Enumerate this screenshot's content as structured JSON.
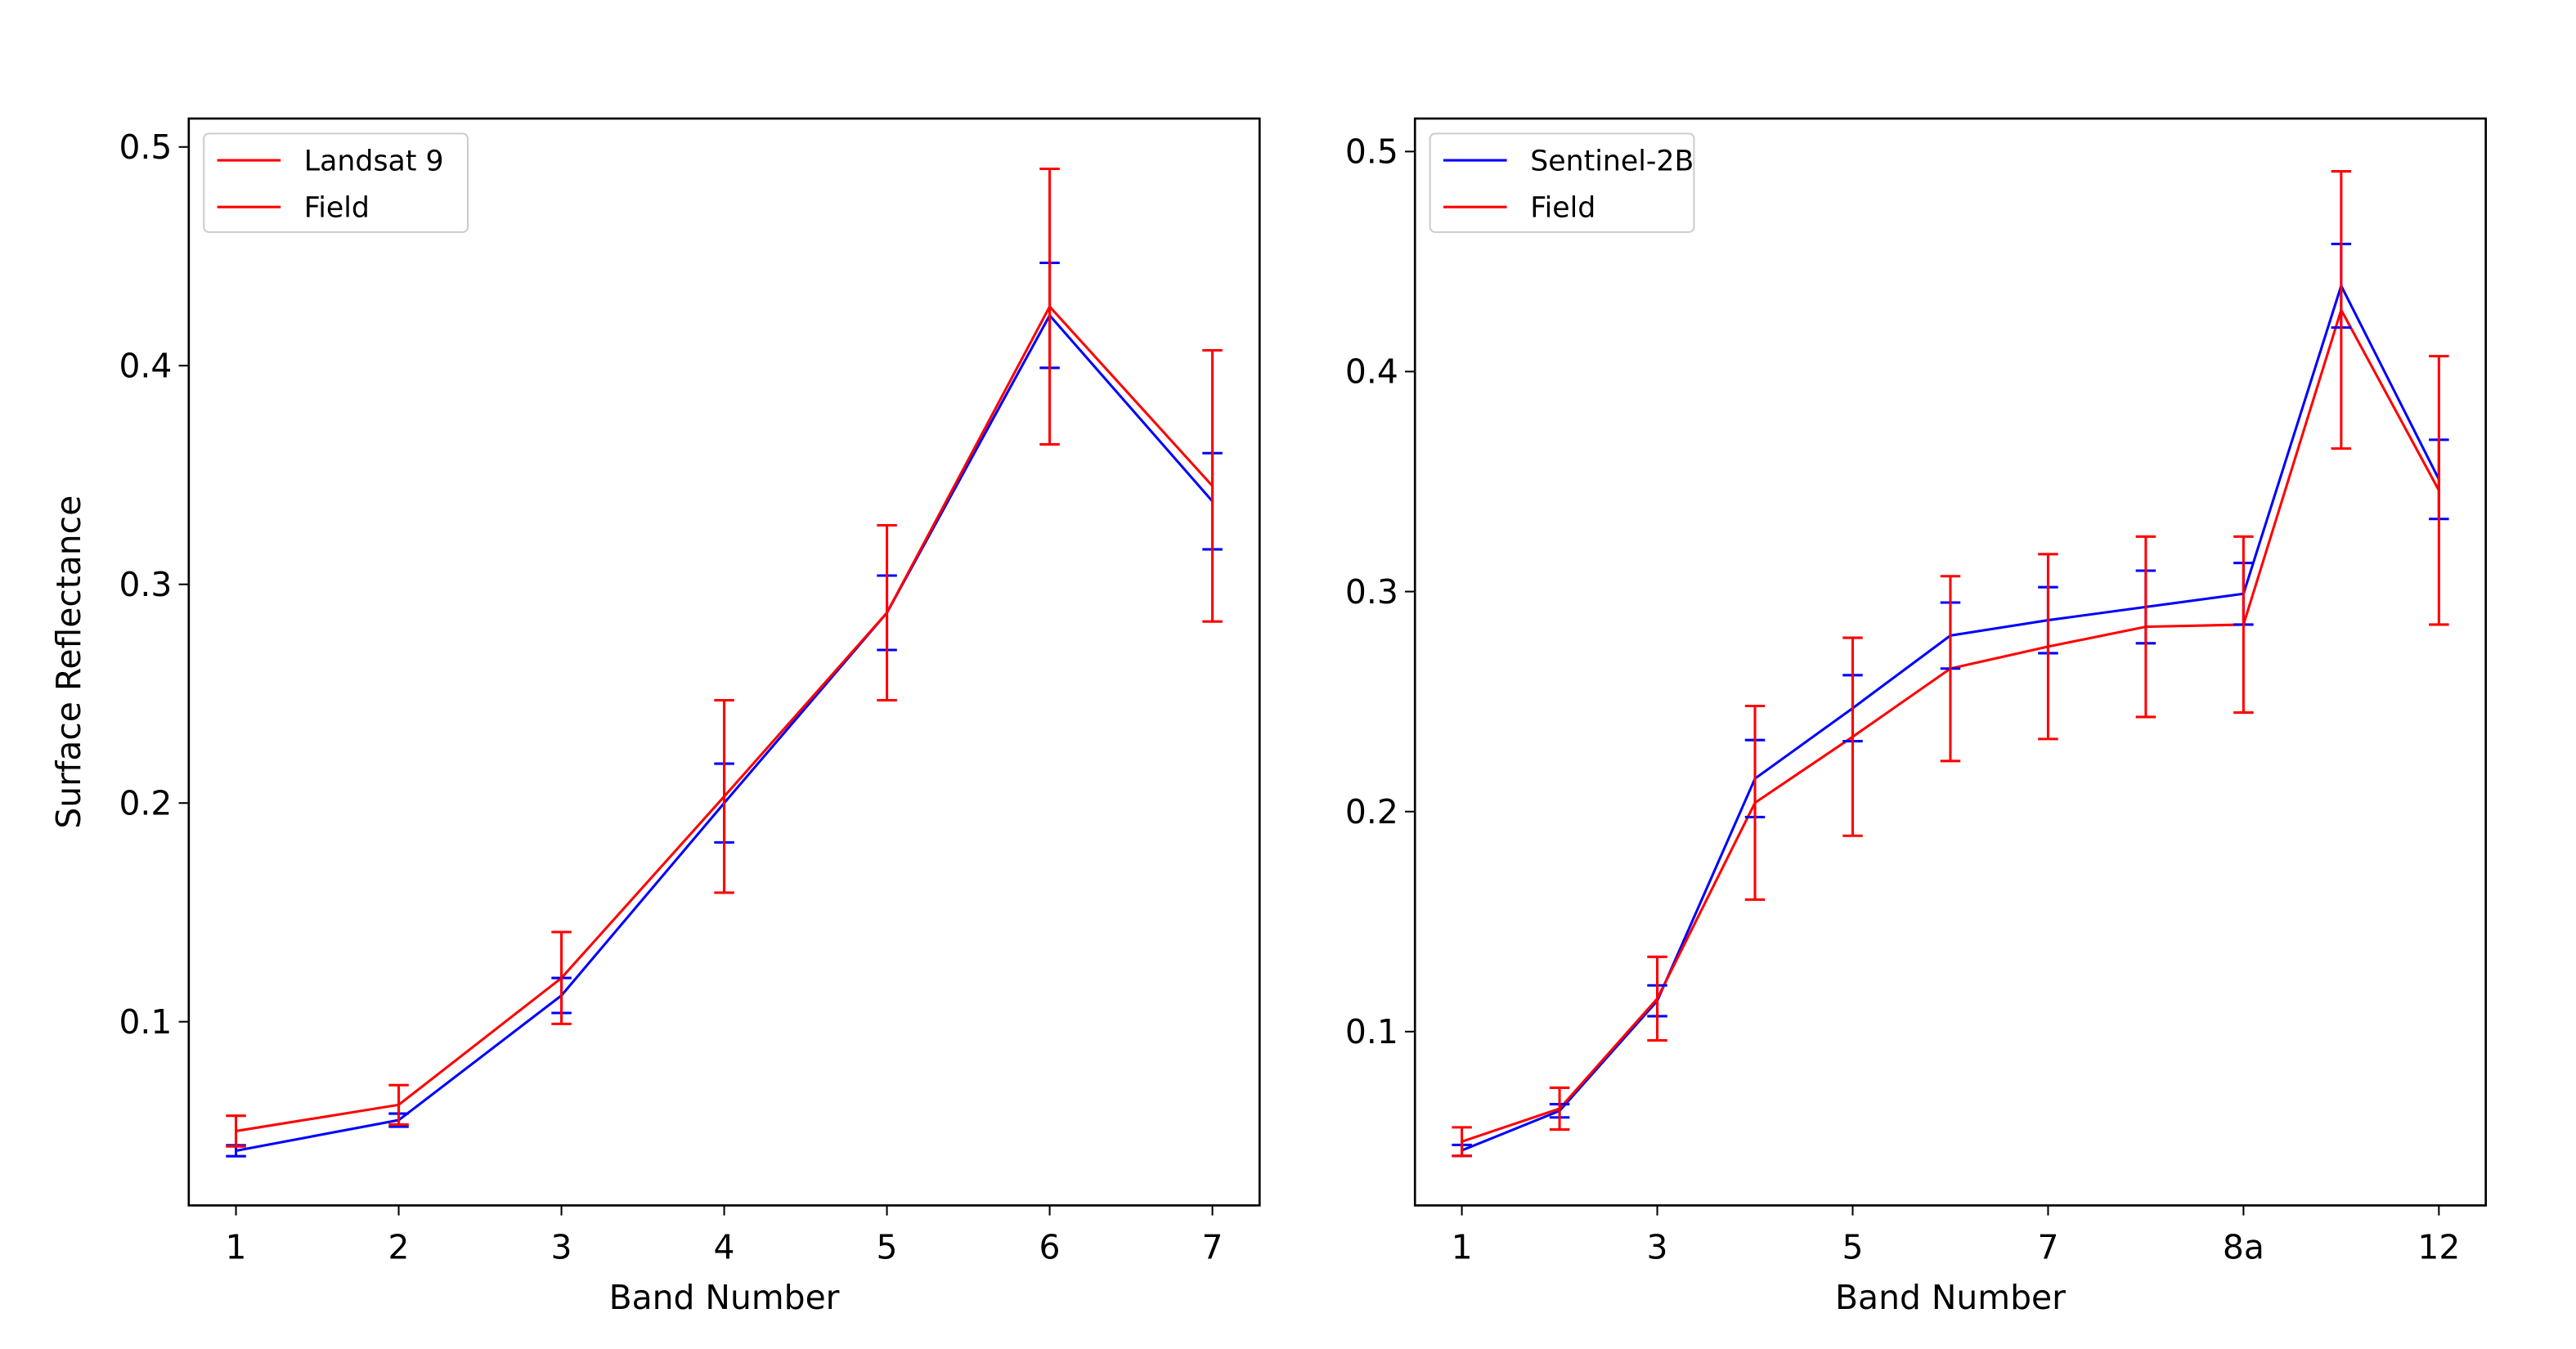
{
  "chart_data": [
    {
      "type": "line",
      "xlabel": "Band Number",
      "ylabel": "Surface Reflectance",
      "categories": [
        "1",
        "2",
        "3",
        "4",
        "5",
        "6",
        "7"
      ],
      "series": [
        {
          "name": "Landsat 9",
          "color": "#0000ff",
          "legend_color": "#ff0000",
          "values": [
            0.041,
            0.055,
            0.112,
            0.2,
            0.287,
            0.423,
            0.338
          ],
          "errors": [
            0.0025,
            0.003,
            0.008,
            0.018,
            0.017,
            0.024,
            0.022
          ]
        },
        {
          "name": "Field",
          "color": "#ff0000",
          "legend_color": "#ff0000",
          "values": [
            0.05,
            0.062,
            0.12,
            0.203,
            0.287,
            0.427,
            0.345
          ],
          "errors": [
            0.007,
            0.009,
            0.021,
            0.044,
            0.04,
            0.063,
            0.062
          ]
        }
      ],
      "ylim": [
        0.016,
        0.513
      ],
      "yticks": [
        0.1,
        0.2,
        0.3,
        0.4,
        0.5
      ],
      "legend": "upper left"
    },
    {
      "type": "line",
      "xlabel": "Band Number",
      "categories": [
        "1",
        null,
        "3",
        null,
        "5",
        null,
        "7",
        null,
        "8a",
        null,
        "12"
      ],
      "series": [
        {
          "name": "Sentinel-2B",
          "color": "#0000ff",
          "legend_color": "#0000ff",
          "values": [
            0.046,
            0.064,
            0.114,
            0.215,
            0.247,
            0.28,
            0.287,
            0.293,
            0.299,
            0.439,
            0.351
          ],
          "errors": [
            0.0025,
            0.003,
            0.007,
            0.0175,
            0.015,
            0.015,
            0.015,
            0.0165,
            0.014,
            0.019,
            0.018
          ]
        },
        {
          "name": "Field",
          "color": "#ff0000",
          "legend_color": "#ff0000",
          "values": [
            0.05,
            0.065,
            0.115,
            0.204,
            0.234,
            0.265,
            0.275,
            0.284,
            0.285,
            0.428,
            0.346
          ],
          "errors": [
            0.0065,
            0.0095,
            0.019,
            0.044,
            0.045,
            0.042,
            0.042,
            0.041,
            0.04,
            0.063,
            0.061
          ]
        }
      ],
      "ylim": [
        0.021,
        0.515
      ],
      "yticks": [
        0.1,
        0.2,
        0.3,
        0.4,
        0.5
      ],
      "legend": "upper left"
    }
  ]
}
